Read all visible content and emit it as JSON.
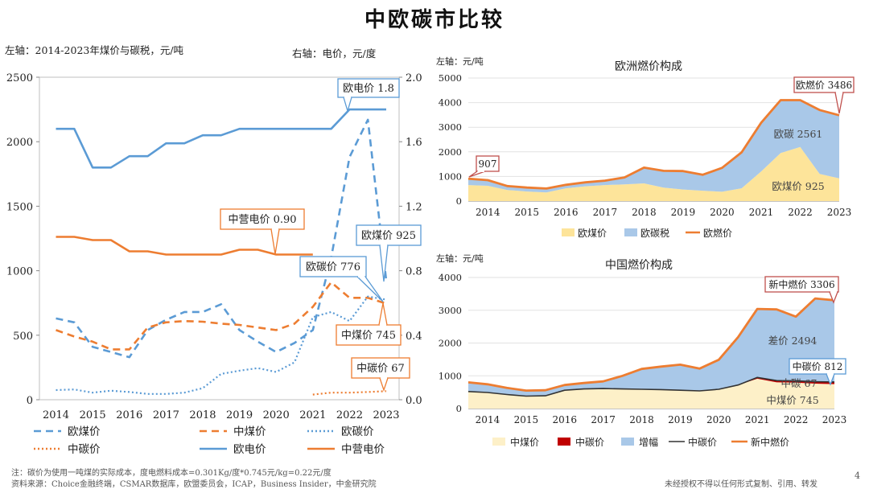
{
  "title": "中欧碳市比较",
  "left_chart": {
    "left_axis_label": "左轴：2014-2023年煤价与碳税，元/吨",
    "right_axis_label": "右轴：电价，元/度",
    "legend": [
      "欧煤价",
      "中煤价",
      "欧碳价",
      "中碳价",
      "欧电价",
      "中营电价"
    ],
    "callouts": [
      "欧电价 1.8",
      "中营电价 0.90",
      "欧煤价 925",
      "欧碳价 776",
      "中煤价 745",
      "中碳价 67"
    ]
  },
  "eu_chart": {
    "axis_note": "左轴：元/吨",
    "title": "欧洲燃价构成",
    "legend": [
      "欧煤价",
      "欧碳税",
      "欧燃价"
    ],
    "callouts": [
      "907",
      "欧燃价 3486"
    ],
    "labels": [
      "欧碳 2561",
      "欧煤价 925"
    ]
  },
  "cn_chart": {
    "axis_note": "左轴：元/吨",
    "title": "中国燃价构成",
    "legend": [
      "中煤价",
      "中碳价",
      "增幅",
      "中碳价",
      "新中燃价"
    ],
    "callouts": [
      "新中燃价 3306",
      "中碳价 812"
    ],
    "labels": [
      "差价 2494",
      "中碳 67",
      "中煤价 745"
    ]
  },
  "footer": {
    "note": "注：碳价为使用一吨煤的实际成本，度电燃料成本=0.301Kg/度*0.745元/kg=0.22元/度",
    "source": "资料来源：Choice金融终端，CSMAR数据库，欧盟委员会，ICAP，Business Insider，中金研究院",
    "rights": "未经授权不得以任何形式复制、引用、转发",
    "page": "4"
  },
  "colors": {
    "blue": "#5b9bd5",
    "orange": "#ed7d31",
    "light_blue": "#a9c8e8",
    "light_yellow": "#fde49a",
    "cream": "#fdf0c8",
    "dark_red": "#c00000",
    "callout_red": "#c0504d",
    "black": "#333333"
  },
  "chart_data": [
    {
      "type": "line",
      "x": [
        2014,
        2014.5,
        2015,
        2015.5,
        2016,
        2016.5,
        2017,
        2017.5,
        2018,
        2018.5,
        2019,
        2019.5,
        2020,
        2020.5,
        2021,
        2021.5,
        2022,
        2022.5,
        2023
      ],
      "x_ticks": [
        2014,
        2015,
        2016,
        2017,
        2018,
        2019,
        2020,
        2021,
        2022,
        2023
      ],
      "y_left_ticks": [
        0,
        500,
        1000,
        1500,
        2000,
        2500
      ],
      "ylim_left": [
        0,
        2500
      ],
      "y_right_ticks": [
        "0.0",
        "0.4",
        "0.8",
        "1.2",
        "1.6",
        "2.0"
      ],
      "ylim_right": [
        0,
        2.0
      ],
      "series": [
        {
          "name": "欧煤价",
          "axis": "left",
          "style": "dashed",
          "color": "#5b9bd5",
          "values": [
            630,
            600,
            410,
            370,
            330,
            540,
            620,
            680,
            680,
            740,
            540,
            450,
            370,
            440,
            540,
            1100,
            1880,
            2170,
            925
          ]
        },
        {
          "name": "中煤价",
          "axis": "left",
          "style": "dashed",
          "color": "#ed7d31",
          "values": [
            540,
            490,
            450,
            390,
            390,
            560,
            600,
            610,
            605,
            590,
            580,
            560,
            540,
            590,
            720,
            910,
            790,
            790,
            745
          ]
        },
        {
          "name": "欧碳价",
          "axis": "left",
          "style": "dotted",
          "color": "#5b9bd5",
          "values": [
            75,
            80,
            55,
            70,
            60,
            45,
            45,
            55,
            90,
            200,
            225,
            245,
            215,
            290,
            640,
            680,
            610,
            800,
            776
          ]
        },
        {
          "name": "中碳价",
          "axis": "left",
          "style": "dotted",
          "color": "#ed7d31",
          "values": [
            null,
            null,
            null,
            null,
            null,
            null,
            null,
            null,
            null,
            null,
            null,
            null,
            null,
            null,
            40,
            55,
            55,
            60,
            67
          ]
        },
        {
          "name": "欧电价",
          "axis": "right",
          "style": "solid",
          "color": "#5b9bd5",
          "values": [
            1.68,
            1.68,
            1.44,
            1.44,
            1.51,
            1.51,
            1.59,
            1.59,
            1.64,
            1.64,
            1.68,
            1.68,
            1.68,
            1.68,
            1.68,
            1.68,
            1.8,
            1.8,
            1.8
          ]
        },
        {
          "name": "中营电价",
          "axis": "right",
          "style": "solid",
          "color": "#ed7d31",
          "values": [
            1.01,
            1.01,
            0.99,
            0.99,
            0.92,
            0.92,
            0.9,
            0.9,
            0.9,
            0.9,
            0.93,
            0.93,
            0.9,
            0.9,
            0.9,
            null,
            null,
            null,
            null
          ]
        }
      ]
    },
    {
      "type": "area",
      "title": "欧洲燃价构成",
      "x": [
        2013.5,
        2014,
        2014.5,
        2015,
        2015.5,
        2016,
        2016.5,
        2017,
        2017.5,
        2018,
        2018.5,
        2019,
        2019.5,
        2020,
        2020.5,
        2021,
        2021.5,
        2022,
        2022.5,
        2023
      ],
      "x_ticks": [
        2014,
        2015,
        2016,
        2017,
        2018,
        2019,
        2020,
        2021,
        2022,
        2023
      ],
      "y_ticks": [
        0,
        1000,
        2000,
        3000,
        4000,
        5000
      ],
      "ylim": [
        0,
        5000
      ],
      "series": [
        {
          "name": "欧煤价",
          "kind": "area",
          "color": "#fde49a",
          "values": [
            650,
            620,
            450,
            390,
            350,
            520,
            600,
            650,
            680,
            720,
            550,
            470,
            420,
            380,
            520,
            1200,
            1950,
            2200,
            1100,
            925
          ]
        },
        {
          "name": "欧碳税",
          "kind": "area",
          "color": "#a9c8e8",
          "values": [
            257,
            230,
            160,
            160,
            160,
            140,
            160,
            180,
            280,
            640,
            680,
            750,
            650,
            970,
            1460,
            1980,
            2150,
            1900,
            2600,
            2561
          ]
        },
        {
          "name": "欧燃价",
          "kind": "line",
          "color": "#ed7d31",
          "values": [
            907,
            850,
            610,
            550,
            510,
            660,
            760,
            830,
            960,
            1360,
            1230,
            1220,
            1070,
            1350,
            1980,
            3180,
            4100,
            4100,
            3700,
            3486
          ]
        }
      ]
    },
    {
      "type": "area",
      "title": "中国燃价构成",
      "x": [
        2013.5,
        2014,
        2014.5,
        2015,
        2015.5,
        2016,
        2016.5,
        2017,
        2017.5,
        2018,
        2018.5,
        2019,
        2019.5,
        2020,
        2020.5,
        2021,
        2021.5,
        2022,
        2022.5,
        2023
      ],
      "x_ticks": [
        2014,
        2015,
        2016,
        2017,
        2018,
        2019,
        2020,
        2021,
        2022,
        2023
      ],
      "y_ticks": [
        0,
        1000,
        2000,
        3000,
        4000
      ],
      "ylim": [
        0,
        4000
      ],
      "series": [
        {
          "name": "中煤价",
          "kind": "area",
          "color": "#fdf0c8",
          "values": [
            520,
            490,
            430,
            380,
            390,
            560,
            600,
            610,
            600,
            590,
            580,
            560,
            540,
            590,
            720,
            910,
            800,
            790,
            760,
            745
          ]
        },
        {
          "name": "中碳价",
          "kind": "area",
          "color": "#c00000",
          "values": [
            0,
            0,
            0,
            0,
            0,
            0,
            0,
            0,
            0,
            0,
            0,
            0,
            0,
            0,
            0,
            40,
            55,
            55,
            60,
            67
          ]
        },
        {
          "name": "增幅",
          "kind": "area",
          "color": "#a9c8e8",
          "values": [
            280,
            250,
            200,
            170,
            170,
            160,
            180,
            220,
            400,
            620,
            700,
            780,
            680,
            900,
            1460,
            2090,
            2170,
            1960,
            2540,
            2494
          ]
        },
        {
          "name": "中碳价",
          "kind": "line",
          "color": "#333333",
          "values": [
            520,
            490,
            430,
            380,
            390,
            560,
            600,
            610,
            600,
            590,
            580,
            560,
            540,
            590,
            720,
            950,
            855,
            845,
            820,
            812
          ]
        },
        {
          "name": "新中燃价",
          "kind": "line",
          "color": "#ed7d31",
          "values": [
            800,
            740,
            630,
            550,
            560,
            720,
            780,
            830,
            1000,
            1210,
            1280,
            1340,
            1220,
            1490,
            2180,
            3040,
            3025,
            2805,
            3360,
            3306
          ]
        }
      ]
    }
  ]
}
